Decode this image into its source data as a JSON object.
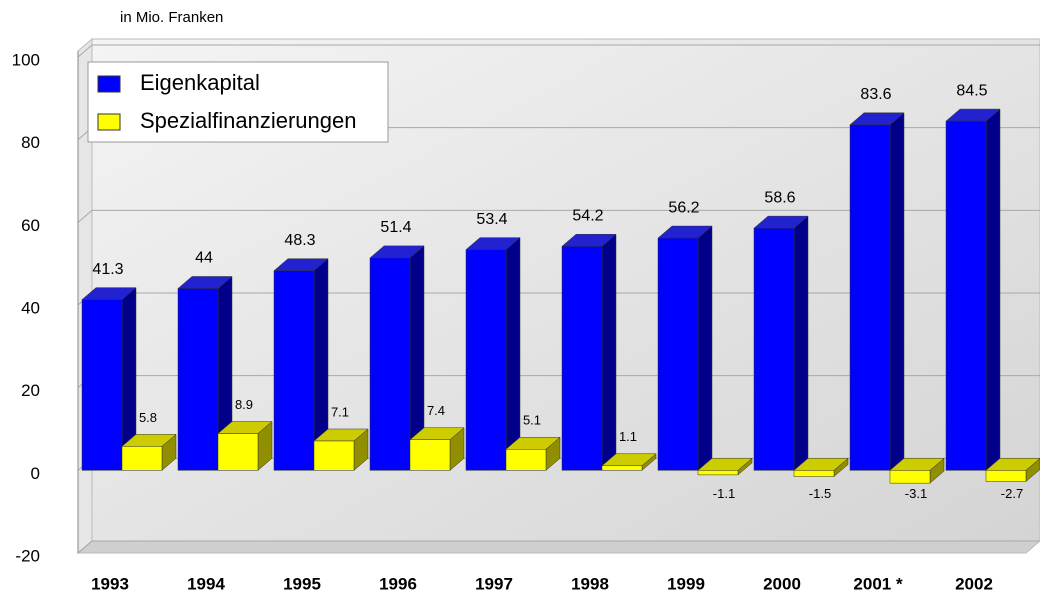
{
  "chart_data": {
    "type": "bar3d",
    "subtitle": "in Mio. Franken",
    "categories": [
      "1993",
      "1994",
      "1995",
      "1996",
      "1997",
      "1998",
      "1999",
      "2000",
      "2001 *",
      "2002"
    ],
    "series": [
      {
        "name": "Eigenkapital",
        "color": "#0000ff",
        "values": [
          41.3,
          44,
          48.3,
          51.4,
          53.4,
          54.2,
          56.2,
          58.6,
          83.6,
          84.5
        ]
      },
      {
        "name": "Spezialfinanzierungen",
        "color": "#ffff00",
        "values": [
          5.8,
          8.9,
          7.1,
          7.4,
          5.1,
          1.1,
          -1.1,
          -1.5,
          -3.1,
          -2.7
        ]
      }
    ],
    "ylim": [
      -20,
      100
    ],
    "yticks": [
      -20,
      0,
      20,
      40,
      60,
      80,
      100
    ],
    "grid": true,
    "legend": "upper left"
  }
}
